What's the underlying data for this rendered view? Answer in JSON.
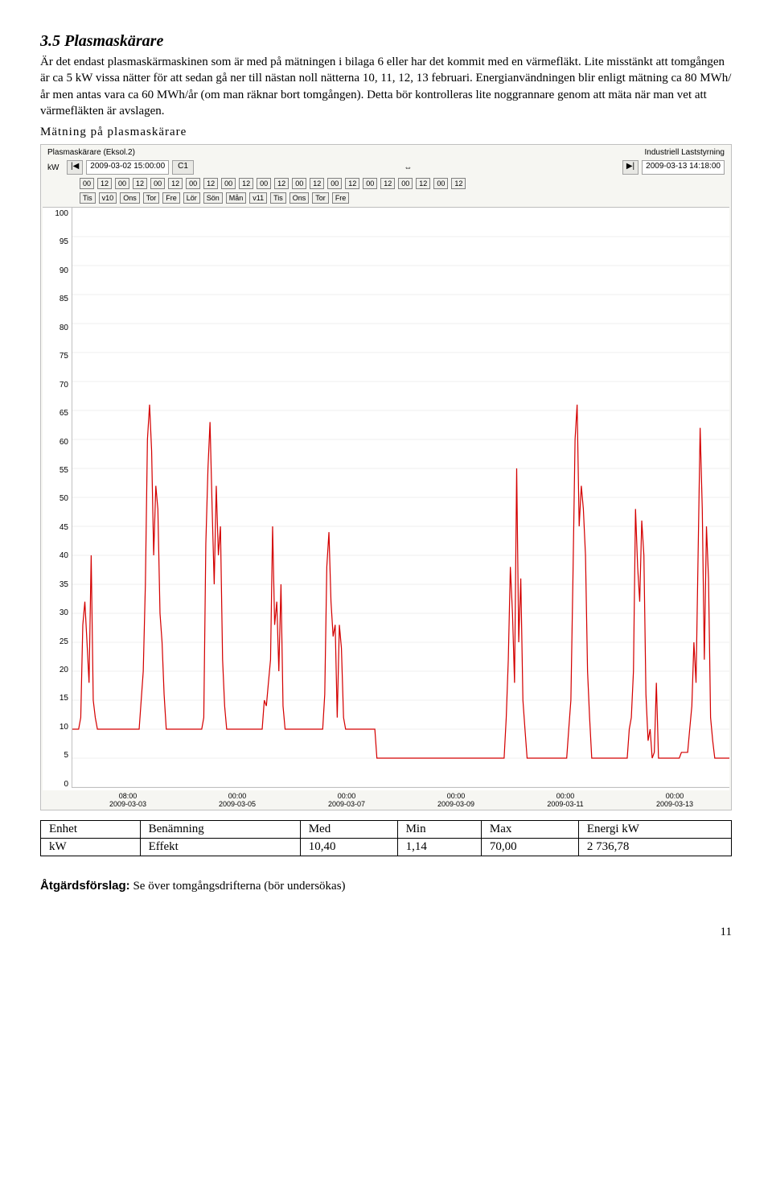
{
  "heading": "3.5  Plasmaskärare",
  "paragraph": "Är det endast plasmaskärmaskinen som är med på mätningen i bilaga 6 eller har det kommit med en värmefläkt. Lite misstänkt att tomgången är ca 5 kW vissa nätter för att sedan gå ner till nästan noll nätterna 10, 11, 12, 13 februari. Energianvändningen blir enligt mätning ca 80 MWh/år men antas vara ca 60 MWh/år (om man räknar bort tomgången). Detta bör kontrolleras lite noggrannare genom att mäta när man vet att värmefläkten är avslagen.",
  "subheading": "Mätning på plasmaskärare",
  "chart": {
    "title_left": "Plasmaskärare (Eksol.2)",
    "title_right": "Industriell Laststyrning",
    "unit": "kW",
    "time_start": "2009-03-02 15:00:00",
    "time_end": "2009-03-13 14:18:00",
    "btn_left": "|◀",
    "btn_right": "▶|",
    "c1_label": "C1",
    "mid_symbol": "⇔",
    "tags_row": [
      "00",
      "12",
      "00",
      "12",
      "00",
      "12",
      "00",
      "12",
      "00",
      "12",
      "00",
      "12",
      "00",
      "12",
      "00",
      "12",
      "00",
      "12",
      "00",
      "12",
      "00",
      "12"
    ],
    "tags_day": [
      "Tis",
      "Ons",
      "Tor",
      "Fre",
      "Lör",
      "Sön",
      "Mån",
      "Tis",
      "Ons",
      "Tor",
      "Fre"
    ],
    "tags_v": [
      "v10",
      "v11"
    ],
    "y_ticks": [
      "100",
      "95",
      "90",
      "85",
      "80",
      "75",
      "70",
      "65",
      "60",
      "55",
      "50",
      "45",
      "40",
      "35",
      "30",
      "25",
      "20",
      "15",
      "10",
      "5",
      "0"
    ],
    "y_max": 100,
    "x_ticks": [
      {
        "time": "08:00",
        "date": "2009-03-03"
      },
      {
        "time": "00:00",
        "date": "2009-03-05"
      },
      {
        "time": "00:00",
        "date": "2009-03-07"
      },
      {
        "time": "00:00",
        "date": "2009-03-09"
      },
      {
        "time": "00:00",
        "date": "2009-03-11"
      },
      {
        "time": "00:00",
        "date": "2009-03-13"
      }
    ],
    "line_color": "#d40000",
    "line_width": 1.2,
    "grid_color": "#e0e0e0",
    "series": [
      10,
      10,
      10,
      10,
      12,
      28,
      32,
      25,
      18,
      40,
      15,
      12,
      10,
      10,
      10,
      10,
      10,
      10,
      10,
      10,
      10,
      10,
      10,
      10,
      10,
      10,
      10,
      10,
      10,
      10,
      10,
      10,
      10,
      15,
      20,
      35,
      60,
      66,
      58,
      40,
      52,
      48,
      30,
      25,
      16,
      10,
      10,
      10,
      10,
      10,
      10,
      10,
      10,
      10,
      10,
      10,
      10,
      10,
      10,
      10,
      10,
      10,
      10,
      12,
      42,
      55,
      63,
      48,
      35,
      52,
      40,
      45,
      22,
      14,
      10,
      10,
      10,
      10,
      10,
      10,
      10,
      10,
      10,
      10,
      10,
      10,
      10,
      10,
      10,
      10,
      10,
      10,
      15,
      14,
      18,
      22,
      45,
      28,
      32,
      20,
      35,
      14,
      10,
      10,
      10,
      10,
      10,
      10,
      10,
      10,
      10,
      10,
      10,
      10,
      10,
      10,
      10,
      10,
      10,
      10,
      10,
      16,
      38,
      44,
      32,
      26,
      28,
      12,
      28,
      24,
      12,
      10,
      10,
      10,
      10,
      10,
      10,
      10,
      10,
      10,
      10,
      10,
      10,
      10,
      10,
      10,
      5,
      5,
      5,
      5,
      5,
      5,
      5,
      5,
      5,
      5,
      5,
      5,
      5,
      5,
      5,
      5,
      5,
      5,
      5,
      5,
      5,
      5,
      5,
      5,
      5,
      5,
      5,
      5,
      5,
      5,
      5,
      5,
      5,
      5,
      5,
      5,
      5,
      5,
      5,
      5,
      5,
      5,
      5,
      5,
      5,
      5,
      5,
      5,
      5,
      5,
      5,
      5,
      5,
      5,
      5,
      5,
      5,
      5,
      5,
      5,
      5,
      5,
      12,
      22,
      38,
      30,
      18,
      55,
      25,
      36,
      15,
      10,
      5,
      5,
      5,
      5,
      5,
      5,
      5,
      5,
      5,
      5,
      5,
      5,
      5,
      5,
      5,
      5,
      5,
      5,
      5,
      5,
      10,
      15,
      36,
      60,
      66,
      45,
      52,
      48,
      40,
      20,
      12,
      5,
      5,
      5,
      5,
      5,
      5,
      5,
      5,
      5,
      5,
      5,
      5,
      5,
      5,
      5,
      5,
      5,
      5,
      10,
      12,
      20,
      48,
      38,
      32,
      46,
      40,
      16,
      8,
      10,
      5,
      6,
      18,
      5,
      5,
      5,
      5,
      5,
      5,
      5,
      5,
      5,
      5,
      5,
      6,
      6,
      6,
      6,
      10,
      14,
      25,
      18,
      40,
      62,
      48,
      22,
      45,
      36,
      12,
      8,
      5,
      5,
      5,
      5,
      5,
      5,
      5,
      5
    ]
  },
  "table": {
    "headers": [
      "Enhet",
      "Benämning",
      "Med",
      "Min",
      "Max",
      "Energi kW"
    ],
    "row": [
      "kW",
      "Effekt",
      "10,40",
      "1,14",
      "70,00",
      "2 736,78"
    ]
  },
  "action_label": "Åtgärdsförslag:",
  "action_text": " Se över tomgångsdrifterna (bör undersökas)",
  "page_number": "11"
}
